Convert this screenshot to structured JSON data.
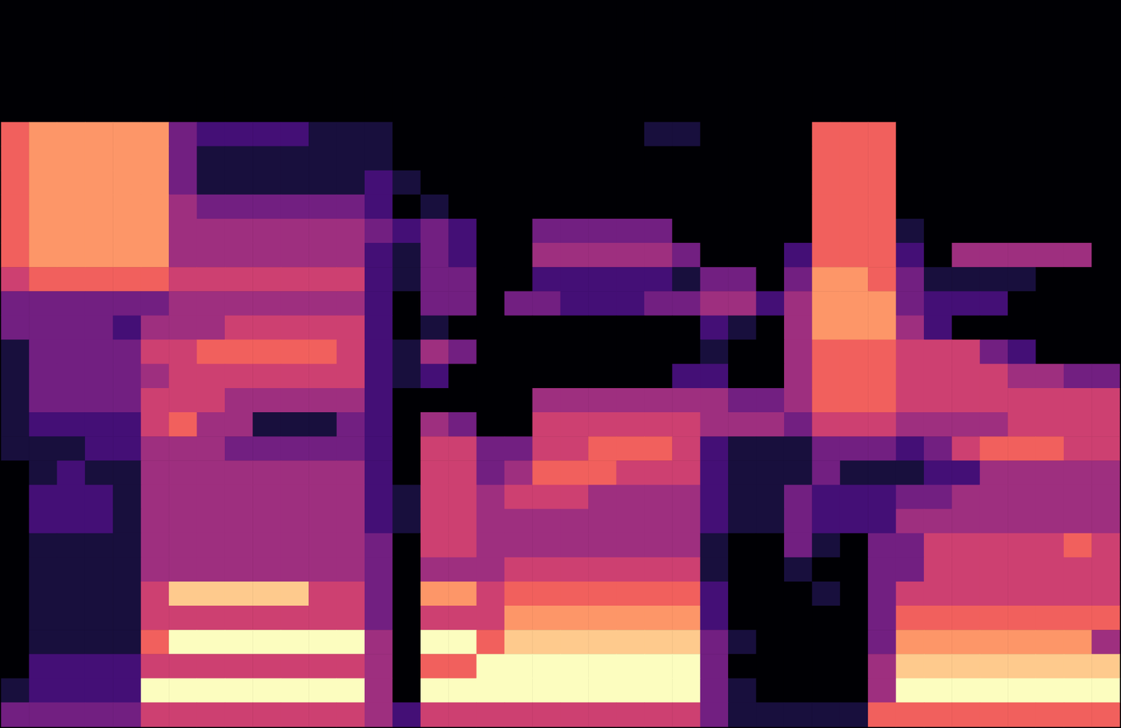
{
  "chart_data": {
    "type": "heatmap",
    "color": "magma",
    "tick_labels": false,
    "zlim": [
      0,
      9
    ],
    "cells": [
      [
        0,
        0,
        0,
        0,
        0,
        0,
        0,
        0,
        0,
        0,
        0,
        0,
        0,
        0,
        0,
        0,
        0,
        0,
        0,
        0,
        0,
        0,
        0,
        0,
        0,
        0,
        0,
        0,
        0,
        0,
        0,
        0,
        0,
        0,
        0,
        0,
        0,
        0,
        0,
        0
      ],
      [
        0,
        0,
        0,
        0,
        0,
        0,
        0,
        0,
        0,
        0,
        0,
        0,
        0,
        0,
        0,
        0,
        0,
        0,
        0,
        0,
        0,
        0,
        0,
        0,
        0,
        0,
        0,
        0,
        0,
        0,
        0,
        0,
        0,
        0,
        0,
        0,
        0,
        0,
        0,
        0
      ],
      [
        0,
        0,
        0,
        0,
        0,
        0,
        0,
        0,
        0,
        0,
        0,
        0,
        0,
        0,
        0,
        0,
        0,
        0,
        0,
        0,
        0,
        0,
        0,
        0,
        0,
        0,
        0,
        0,
        0,
        0,
        0,
        0,
        0,
        0,
        0,
        0,
        0,
        0,
        0,
        0
      ],
      [
        0,
        0,
        0,
        0,
        0,
        0,
        0,
        0,
        0,
        0,
        0,
        0,
        0,
        0,
        0,
        0,
        0,
        0,
        0,
        0,
        0,
        0,
        0,
        0,
        0,
        0,
        0,
        0,
        0,
        0,
        0,
        0,
        0,
        0,
        0,
        0,
        0,
        0,
        0,
        0
      ],
      [
        0,
        0,
        0,
        0,
        0,
        0,
        0,
        0,
        0,
        0,
        0,
        0,
        0,
        0,
        0,
        0,
        0,
        0,
        0,
        0,
        0,
        0,
        0,
        0,
        0,
        0,
        0,
        0,
        0,
        0,
        0,
        0,
        0,
        0,
        0,
        0,
        0,
        0,
        0,
        0
      ],
      [
        6,
        7,
        7,
        7,
        7,
        7,
        3,
        2,
        2,
        2,
        2,
        1,
        1,
        1,
        0,
        0,
        0,
        0,
        0,
        0,
        0,
        0,
        0,
        1,
        1,
        0,
        0,
        0,
        0,
        6,
        6,
        6,
        0,
        0,
        0,
        0,
        0,
        0,
        0,
        0
      ],
      [
        6,
        7,
        7,
        7,
        7,
        7,
        3,
        1,
        1,
        1,
        1,
        1,
        1,
        1,
        0,
        0,
        0,
        0,
        0,
        0,
        0,
        0,
        0,
        0,
        0,
        0,
        0,
        0,
        0,
        6,
        6,
        6,
        0,
        0,
        0,
        0,
        0,
        0,
        0,
        0
      ],
      [
        6,
        7,
        7,
        7,
        7,
        7,
        3,
        1,
        1,
        1,
        1,
        1,
        1,
        2,
        1,
        0,
        0,
        0,
        0,
        0,
        0,
        0,
        0,
        0,
        0,
        0,
        0,
        0,
        0,
        6,
        6,
        6,
        0,
        0,
        0,
        0,
        0,
        0,
        0,
        0
      ],
      [
        6,
        7,
        7,
        7,
        7,
        7,
        4,
        3,
        3,
        3,
        3,
        3,
        3,
        2,
        0,
        1,
        0,
        0,
        0,
        0,
        0,
        0,
        0,
        0,
        0,
        0,
        0,
        0,
        0,
        6,
        6,
        6,
        0,
        0,
        0,
        0,
        0,
        0,
        0,
        0
      ],
      [
        6,
        7,
        7,
        7,
        7,
        7,
        4,
        4,
        4,
        4,
        4,
        4,
        4,
        3,
        2,
        3,
        2,
        0,
        0,
        3,
        3,
        3,
        3,
        3,
        0,
        0,
        0,
        0,
        0,
        6,
        6,
        6,
        1,
        0,
        0,
        0,
        0,
        0,
        0,
        0
      ],
      [
        6,
        7,
        7,
        7,
        7,
        7,
        4,
        4,
        4,
        4,
        4,
        4,
        4,
        2,
        1,
        3,
        2,
        0,
        0,
        4,
        4,
        4,
        4,
        4,
        3,
        0,
        0,
        0,
        2,
        6,
        6,
        6,
        2,
        0,
        4,
        4,
        4,
        4,
        4,
        0
      ],
      [
        5,
        6,
        6,
        6,
        6,
        6,
        5,
        5,
        5,
        5,
        5,
        5,
        5,
        2,
        1,
        3,
        3,
        0,
        0,
        2,
        2,
        2,
        2,
        2,
        1,
        3,
        3,
        0,
        3,
        7,
        7,
        6,
        3,
        1,
        1,
        1,
        1,
        0,
        0,
        0
      ],
      [
        3,
        3,
        3,
        3,
        3,
        3,
        4,
        4,
        4,
        4,
        4,
        4,
        4,
        2,
        0,
        3,
        3,
        0,
        3,
        3,
        2,
        2,
        2,
        3,
        3,
        4,
        4,
        2,
        4,
        7,
        7,
        7,
        3,
        2,
        2,
        2,
        0,
        0,
        0,
        0
      ],
      [
        3,
        3,
        3,
        3,
        2,
        4,
        4,
        4,
        5,
        5,
        5,
        5,
        5,
        2,
        0,
        1,
        0,
        0,
        0,
        0,
        0,
        0,
        0,
        0,
        0,
        2,
        1,
        0,
        4,
        7,
        7,
        7,
        4,
        2,
        0,
        0,
        0,
        0,
        0,
        0
      ],
      [
        1,
        3,
        3,
        3,
        3,
        5,
        5,
        6,
        6,
        6,
        6,
        6,
        5,
        2,
        1,
        4,
        3,
        0,
        0,
        0,
        0,
        0,
        0,
        0,
        0,
        1,
        0,
        0,
        4,
        6,
        6,
        6,
        5,
        5,
        5,
        3,
        2,
        0,
        0,
        0
      ],
      [
        1,
        3,
        3,
        3,
        3,
        4,
        5,
        5,
        5,
        5,
        5,
        5,
        5,
        2,
        1,
        2,
        0,
        0,
        0,
        0,
        0,
        0,
        0,
        0,
        2,
        2,
        0,
        0,
        4,
        6,
        6,
        6,
        5,
        5,
        5,
        5,
        4,
        4,
        3,
        3
      ],
      [
        1,
        3,
        3,
        3,
        3,
        5,
        5,
        5,
        4,
        4,
        4,
        4,
        4,
        2,
        0,
        0,
        0,
        0,
        0,
        4,
        4,
        4,
        4,
        4,
        4,
        4,
        3,
        3,
        4,
        6,
        6,
        6,
        5,
        5,
        5,
        5,
        5,
        5,
        5,
        5
      ],
      [
        1,
        2,
        2,
        2,
        2,
        5,
        6,
        4,
        4,
        1,
        1,
        1,
        3,
        2,
        0,
        4,
        3,
        0,
        0,
        5,
        5,
        5,
        5,
        5,
        5,
        4,
        4,
        4,
        3,
        5,
        5,
        5,
        4,
        4,
        4,
        4,
        5,
        5,
        5,
        5
      ],
      [
        1,
        1,
        1,
        2,
        2,
        4,
        4,
        4,
        3,
        3,
        3,
        3,
        3,
        2,
        0,
        5,
        5,
        3,
        3,
        5,
        5,
        6,
        6,
        6,
        5,
        2,
        1,
        1,
        1,
        3,
        3,
        3,
        2,
        3,
        5,
        6,
        6,
        6,
        5,
        5
      ],
      [
        0,
        1,
        2,
        1,
        1,
        4,
        4,
        4,
        4,
        4,
        4,
        4,
        4,
        2,
        0,
        5,
        5,
        3,
        4,
        6,
        6,
        6,
        5,
        5,
        5,
        2,
        1,
        1,
        1,
        3,
        1,
        1,
        1,
        2,
        2,
        4,
        4,
        4,
        4,
        4
      ],
      [
        0,
        2,
        2,
        2,
        1,
        4,
        4,
        4,
        4,
        4,
        4,
        4,
        4,
        2,
        1,
        5,
        5,
        4,
        5,
        5,
        5,
        4,
        4,
        4,
        4,
        2,
        1,
        1,
        3,
        2,
        2,
        2,
        3,
        3,
        4,
        4,
        4,
        4,
        4,
        4
      ],
      [
        0,
        2,
        2,
        2,
        1,
        4,
        4,
        4,
        4,
        4,
        4,
        4,
        4,
        2,
        1,
        5,
        5,
        4,
        4,
        4,
        4,
        4,
        4,
        4,
        4,
        2,
        1,
        1,
        3,
        2,
        2,
        2,
        4,
        4,
        4,
        4,
        4,
        4,
        4,
        4
      ],
      [
        0,
        1,
        1,
        1,
        1,
        4,
        4,
        4,
        4,
        4,
        4,
        4,
        4,
        3,
        0,
        5,
        5,
        4,
        4,
        4,
        4,
        4,
        4,
        4,
        4,
        1,
        0,
        0,
        3,
        1,
        0,
        3,
        3,
        5,
        5,
        5,
        5,
        5,
        6,
        5
      ],
      [
        0,
        1,
        1,
        1,
        1,
        4,
        4,
        4,
        4,
        4,
        4,
        4,
        4,
        3,
        0,
        4,
        4,
        4,
        5,
        5,
        5,
        5,
        5,
        5,
        5,
        1,
        0,
        0,
        1,
        0,
        0,
        3,
        3,
        5,
        5,
        5,
        5,
        5,
        5,
        5
      ],
      [
        0,
        1,
        1,
        1,
        1,
        5,
        8,
        8,
        8,
        8,
        8,
        5,
        5,
        3,
        0,
        7,
        7,
        5,
        6,
        6,
        6,
        6,
        6,
        6,
        6,
        2,
        0,
        0,
        0,
        1,
        0,
        3,
        5,
        5,
        5,
        5,
        5,
        5,
        5,
        5
      ],
      [
        0,
        1,
        1,
        1,
        1,
        5,
        5,
        5,
        5,
        5,
        5,
        5,
        5,
        3,
        0,
        5,
        5,
        5,
        7,
        7,
        7,
        7,
        7,
        7,
        7,
        2,
        0,
        0,
        0,
        0,
        0,
        3,
        6,
        6,
        6,
        6,
        6,
        6,
        6,
        6
      ],
      [
        0,
        1,
        1,
        1,
        1,
        6,
        9,
        9,
        9,
        9,
        9,
        9,
        9,
        4,
        0,
        9,
        9,
        6,
        8,
        8,
        8,
        8,
        8,
        8,
        8,
        3,
        1,
        0,
        0,
        0,
        0,
        3,
        7,
        7,
        7,
        7,
        7,
        7,
        7,
        4
      ],
      [
        0,
        2,
        2,
        2,
        2,
        5,
        5,
        5,
        5,
        5,
        5,
        5,
        5,
        4,
        0,
        6,
        6,
        9,
        9,
        9,
        9,
        9,
        9,
        9,
        9,
        3,
        0,
        0,
        0,
        0,
        0,
        4,
        8,
        8,
        8,
        8,
        8,
        8,
        8,
        8
      ],
      [
        1,
        2,
        2,
        2,
        2,
        9,
        9,
        9,
        9,
        9,
        9,
        9,
        9,
        4,
        0,
        9,
        9,
        9,
        9,
        9,
        9,
        9,
        9,
        9,
        9,
        3,
        1,
        0,
        0,
        0,
        0,
        4,
        9,
        9,
        9,
        9,
        9,
        9,
        9,
        9
      ],
      [
        3,
        3,
        3,
        3,
        3,
        5,
        5,
        5,
        5,
        5,
        5,
        5,
        5,
        4,
        2,
        5,
        5,
        5,
        5,
        5,
        5,
        5,
        5,
        5,
        5,
        3,
        1,
        1,
        1,
        1,
        1,
        6,
        6,
        6,
        6,
        6,
        6,
        6,
        6,
        6
      ]
    ]
  }
}
